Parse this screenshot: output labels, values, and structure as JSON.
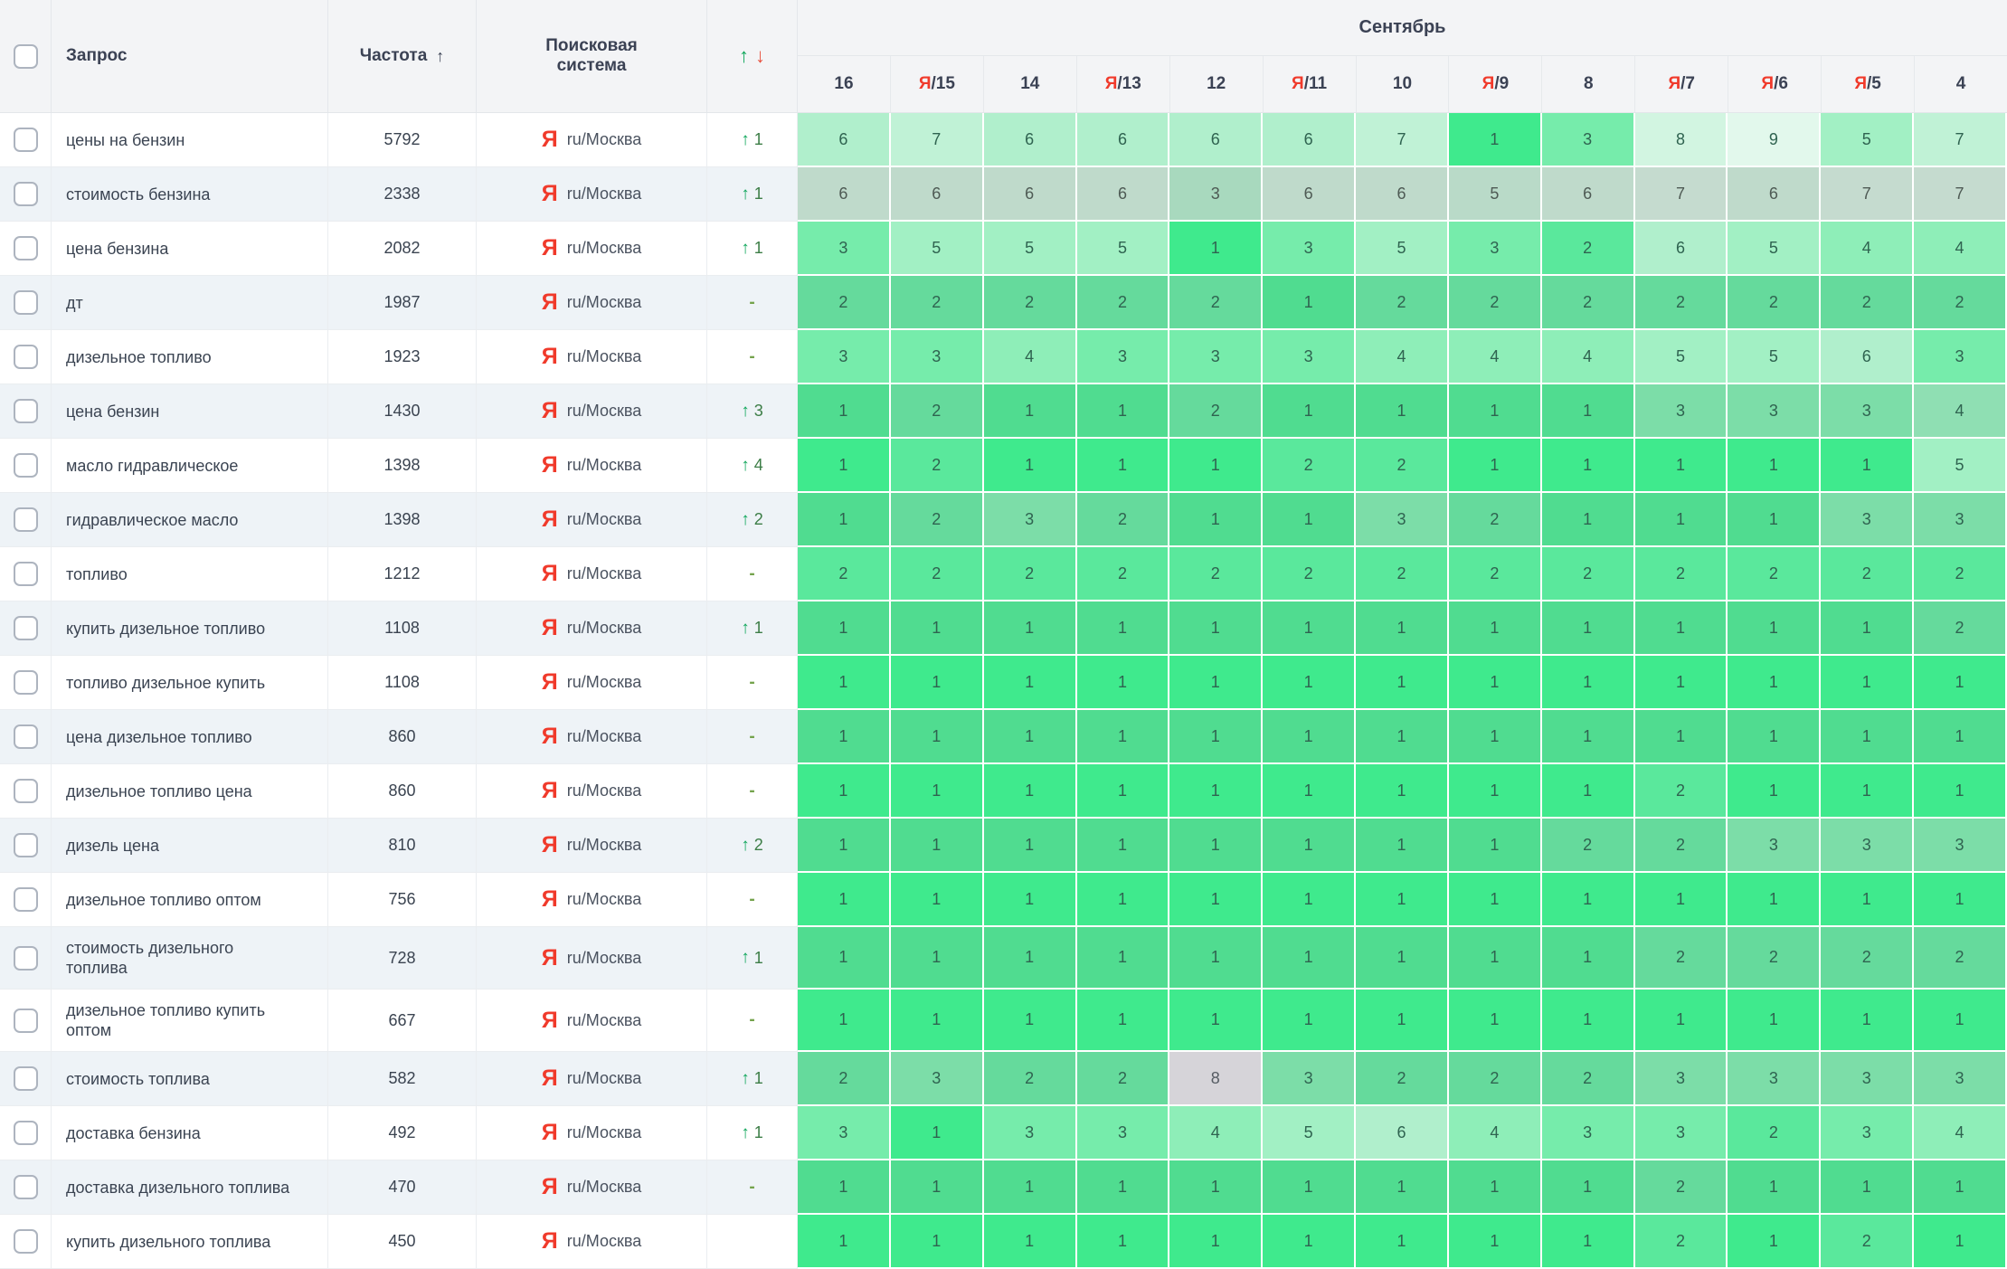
{
  "header": {
    "month": "Сентябрь",
    "col_query": "Запрос",
    "col_frequency": "Частота",
    "sort_arrow": "↑",
    "col_engine": "Поисковая система",
    "up_icon": "↑",
    "down_icon": "↓",
    "dates": [
      {
        "ya": false,
        "day": "16"
      },
      {
        "ya": true,
        "day": "15"
      },
      {
        "ya": false,
        "day": "14"
      },
      {
        "ya": true,
        "day": "13"
      },
      {
        "ya": false,
        "day": "12"
      },
      {
        "ya": true,
        "day": "11"
      },
      {
        "ya": false,
        "day": "10"
      },
      {
        "ya": true,
        "day": "9"
      },
      {
        "ya": false,
        "day": "8"
      },
      {
        "ya": true,
        "day": "7"
      },
      {
        "ya": true,
        "day": "6"
      },
      {
        "ya": true,
        "day": "5"
      },
      {
        "ya": false,
        "day": "4"
      }
    ]
  },
  "engine": {
    "icon": "Я",
    "label": "ru/Москва"
  },
  "colors": {
    "yandex_red": "#f03a2b",
    "up_green": "#0ea65a",
    "down_red": "#e8503e",
    "change_text": "#3c7d46",
    "gray_cell": "#d6d4d9",
    "palette": {
      "1": "#3fea8d",
      "2": "#5ae89c",
      "3": "#76ecab",
      "4": "#8eeeb8",
      "5": "#a2f0c4",
      "6": "#b0efcc",
      "7": "#c0f2d6",
      "8": "#d2f5e1",
      "9": "#e2f8ec"
    }
  },
  "rows": [
    {
      "query": "цены на бензин",
      "frequency": "5792",
      "change": {
        "dir": "up",
        "value": "1"
      },
      "positions": [
        6,
        7,
        6,
        6,
        6,
        6,
        7,
        1,
        3,
        8,
        9,
        5,
        7
      ]
    },
    {
      "query": "стоимость бензина",
      "frequency": "2338",
      "change": {
        "dir": "up",
        "value": "1"
      },
      "tone": "gray",
      "positions": [
        6,
        6,
        6,
        6,
        3,
        6,
        6,
        5,
        6,
        7,
        6,
        7,
        7
      ]
    },
    {
      "query": "цена бензина",
      "frequency": "2082",
      "change": {
        "dir": "up",
        "value": "1"
      },
      "positions": [
        3,
        5,
        5,
        5,
        1,
        3,
        5,
        3,
        2,
        6,
        5,
        4,
        4
      ]
    },
    {
      "query": "дт",
      "frequency": "1987",
      "change": {
        "dir": "none"
      },
      "positions": [
        2,
        2,
        2,
        2,
        2,
        1,
        2,
        2,
        2,
        2,
        2,
        2,
        2
      ]
    },
    {
      "query": "дизельное топливо",
      "frequency": "1923",
      "change": {
        "dir": "none"
      },
      "positions": [
        3,
        3,
        4,
        3,
        3,
        3,
        4,
        4,
        4,
        5,
        5,
        6,
        3
      ]
    },
    {
      "query": "цена бензин",
      "frequency": "1430",
      "change": {
        "dir": "up",
        "value": "3"
      },
      "positions": [
        1,
        2,
        1,
        1,
        2,
        1,
        1,
        1,
        1,
        3,
        3,
        3,
        4
      ]
    },
    {
      "query": "масло гидравлическое",
      "frequency": "1398",
      "change": {
        "dir": "up",
        "value": "4"
      },
      "positions": [
        1,
        2,
        1,
        1,
        1,
        2,
        2,
        1,
        1,
        1,
        1,
        1,
        5
      ]
    },
    {
      "query": "гидравлическое масло",
      "frequency": "1398",
      "change": {
        "dir": "up",
        "value": "2"
      },
      "positions": [
        1,
        2,
        3,
        2,
        1,
        1,
        3,
        2,
        1,
        1,
        1,
        3,
        3
      ]
    },
    {
      "query": "топливо",
      "frequency": "1212",
      "change": {
        "dir": "none"
      },
      "positions": [
        2,
        2,
        2,
        2,
        2,
        2,
        2,
        2,
        2,
        2,
        2,
        2,
        2
      ]
    },
    {
      "query": "купить дизельное топливо",
      "frequency": "1108",
      "change": {
        "dir": "up",
        "value": "1"
      },
      "positions": [
        1,
        1,
        1,
        1,
        1,
        1,
        1,
        1,
        1,
        1,
        1,
        1,
        2
      ]
    },
    {
      "query": "топливо дизельное купить",
      "frequency": "1108",
      "change": {
        "dir": "none"
      },
      "positions": [
        1,
        1,
        1,
        1,
        1,
        1,
        1,
        1,
        1,
        1,
        1,
        1,
        1
      ]
    },
    {
      "query": "цена дизельное топливо",
      "frequency": "860",
      "change": {
        "dir": "none"
      },
      "positions": [
        1,
        1,
        1,
        1,
        1,
        1,
        1,
        1,
        1,
        1,
        1,
        1,
        1
      ]
    },
    {
      "query": "дизельное топливо цена",
      "frequency": "860",
      "change": {
        "dir": "none"
      },
      "positions": [
        1,
        1,
        1,
        1,
        1,
        1,
        1,
        1,
        1,
        2,
        1,
        1,
        1
      ]
    },
    {
      "query": "дизель цена",
      "frequency": "810",
      "change": {
        "dir": "up",
        "value": "2"
      },
      "positions": [
        1,
        1,
        1,
        1,
        1,
        1,
        1,
        1,
        2,
        2,
        3,
        3,
        3
      ]
    },
    {
      "query": "дизельное топливо оптом",
      "frequency": "756",
      "change": {
        "dir": "none"
      },
      "positions": [
        1,
        1,
        1,
        1,
        1,
        1,
        1,
        1,
        1,
        1,
        1,
        1,
        1
      ]
    },
    {
      "query": "стоимость дизельного топлива",
      "frequency": "728",
      "change": {
        "dir": "up",
        "value": "1"
      },
      "positions": [
        1,
        1,
        1,
        1,
        1,
        1,
        1,
        1,
        1,
        2,
        2,
        2,
        2
      ]
    },
    {
      "query": "дизельное топливо купить оптом",
      "frequency": "667",
      "change": {
        "dir": "none"
      },
      "positions": [
        1,
        1,
        1,
        1,
        1,
        1,
        1,
        1,
        1,
        1,
        1,
        1,
        1
      ]
    },
    {
      "query": "стоимость топлива",
      "frequency": "582",
      "change": {
        "dir": "up",
        "value": "1"
      },
      "gray_cells": [
        4
      ],
      "positions": [
        2,
        3,
        2,
        2,
        8,
        3,
        2,
        2,
        2,
        3,
        3,
        3,
        3
      ]
    },
    {
      "query": "доставка бензина",
      "frequency": "492",
      "change": {
        "dir": "up",
        "value": "1"
      },
      "positions": [
        3,
        1,
        3,
        3,
        4,
        5,
        6,
        4,
        3,
        3,
        2,
        3,
        4
      ]
    },
    {
      "query": "доставка дизельного топлива",
      "frequency": "470",
      "change": {
        "dir": "none"
      },
      "positions": [
        1,
        1,
        1,
        1,
        1,
        1,
        1,
        1,
        1,
        2,
        1,
        1,
        1
      ]
    },
    {
      "query": "купить дизельного топлива",
      "frequency": "450",
      "change": null,
      "positions": [
        1,
        1,
        1,
        1,
        1,
        1,
        1,
        1,
        1,
        2,
        1,
        2,
        1
      ]
    }
  ]
}
